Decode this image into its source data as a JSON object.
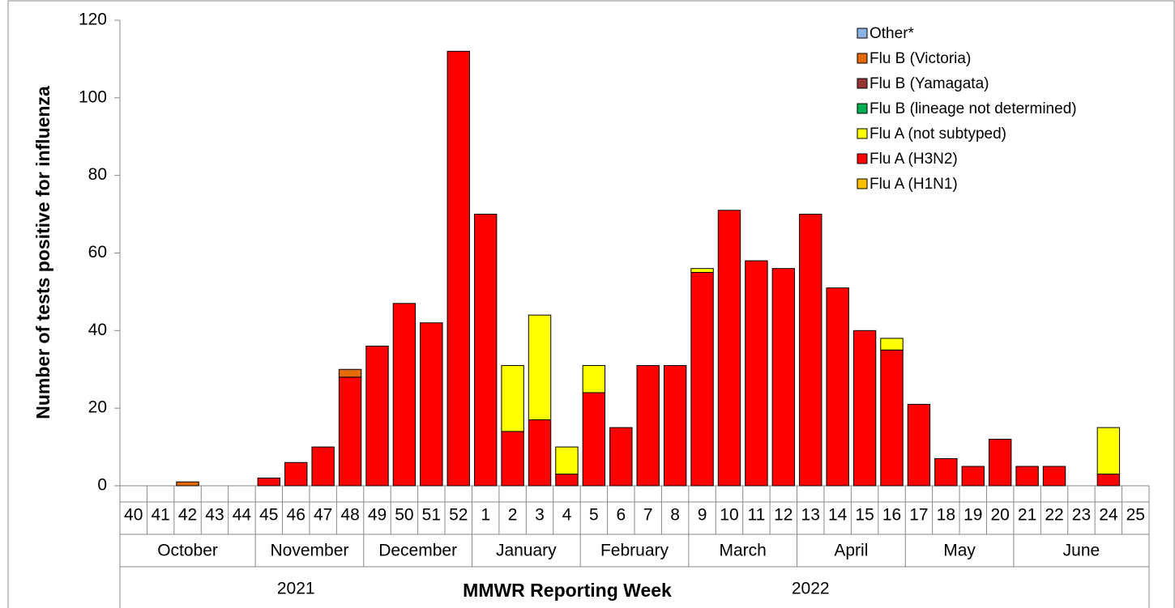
{
  "chart_data": {
    "type": "bar",
    "stacked": true,
    "y_label": "Number of tests positive for influenza",
    "x_label": "MMWR  Reporting Week",
    "categories": [
      "40",
      "41",
      "42",
      "43",
      "44",
      "45",
      "46",
      "47",
      "48",
      "49",
      "50",
      "51",
      "52",
      "1",
      "2",
      "3",
      "4",
      "5",
      "6",
      "7",
      "8",
      "9",
      "10",
      "11",
      "12",
      "13",
      "14",
      "15",
      "16",
      "17",
      "18",
      "19",
      "20",
      "21",
      "22",
      "23",
      "24",
      "25"
    ],
    "months": [
      {
        "label": "October",
        "weeks": [
          "40",
          "44"
        ]
      },
      {
        "label": "November",
        "weeks": [
          "45",
          "48"
        ]
      },
      {
        "label": "December",
        "weeks": [
          "49",
          "52"
        ]
      },
      {
        "label": "January",
        "weeks": [
          "1",
          "4"
        ]
      },
      {
        "label": "February",
        "weeks": [
          "5",
          "8"
        ]
      },
      {
        "label": "March",
        "weeks": [
          "9",
          "12"
        ]
      },
      {
        "label": "April",
        "weeks": [
          "13",
          "16"
        ]
      },
      {
        "label": "May",
        "weeks": [
          "17",
          "20"
        ]
      },
      {
        "label": "June",
        "weeks": [
          "21",
          "25"
        ]
      }
    ],
    "years": [
      {
        "label": "2021",
        "weeks": [
          "40",
          "52"
        ]
      },
      {
        "label": "2022",
        "weeks": [
          "1",
          "25"
        ]
      }
    ],
    "series": [
      {
        "name": "Flu A (H1N1)",
        "color": "#FFC000",
        "values": [
          0,
          0,
          0,
          0,
          0,
          0,
          0,
          0,
          0,
          0,
          0,
          0,
          0,
          0,
          0,
          0,
          0,
          0,
          0,
          0,
          0,
          0,
          0,
          0,
          0,
          0,
          0,
          0,
          0,
          0,
          0,
          0,
          0,
          0,
          0,
          0,
          0,
          0
        ]
      },
      {
        "name": "Flu A (H3N2)",
        "color": "#FF0000",
        "values": [
          0,
          0,
          0,
          0,
          0,
          2,
          6,
          10,
          28,
          36,
          47,
          42,
          112,
          70,
          14,
          17,
          3,
          24,
          15,
          31,
          31,
          55,
          71,
          58,
          56,
          70,
          51,
          40,
          35,
          21,
          7,
          5,
          12,
          5,
          5,
          0,
          3,
          0
        ]
      },
      {
        "name": "Flu A (not subtyped)",
        "color": "#FFFF00",
        "values": [
          0,
          0,
          0,
          0,
          0,
          0,
          0,
          0,
          0,
          0,
          0,
          0,
          0,
          0,
          17,
          27,
          7,
          7,
          0,
          0,
          0,
          1,
          0,
          0,
          0,
          0,
          0,
          0,
          3,
          0,
          0,
          0,
          0,
          0,
          0,
          0,
          12,
          0
        ]
      },
      {
        "name": "Flu B (lineage not determined)",
        "color": "#00B050",
        "values": [
          0,
          0,
          0,
          0,
          0,
          0,
          0,
          0,
          0,
          0,
          0,
          0,
          0,
          0,
          0,
          0,
          0,
          0,
          0,
          0,
          0,
          0,
          0,
          0,
          0,
          0,
          0,
          0,
          0,
          0,
          0,
          0,
          0,
          0,
          0,
          0,
          0,
          0
        ]
      },
      {
        "name": "Flu B (Yamagata)",
        "color": "#943634",
        "values": [
          0,
          0,
          0,
          0,
          0,
          0,
          0,
          0,
          0,
          0,
          0,
          0,
          0,
          0,
          0,
          0,
          0,
          0,
          0,
          0,
          0,
          0,
          0,
          0,
          0,
          0,
          0,
          0,
          0,
          0,
          0,
          0,
          0,
          0,
          0,
          0,
          0,
          0
        ]
      },
      {
        "name": "Flu B (Victoria)",
        "color": "#E36C09",
        "values": [
          0,
          0,
          1,
          0,
          0,
          0,
          0,
          0,
          2,
          0,
          0,
          0,
          0,
          0,
          0,
          0,
          0,
          0,
          0,
          0,
          0,
          0,
          0,
          0,
          0,
          0,
          0,
          0,
          0,
          0,
          0,
          0,
          0,
          0,
          0,
          0,
          0,
          0
        ]
      },
      {
        "name": "Other*",
        "color": "#8EB4E3",
        "values": [
          0,
          0,
          0,
          0,
          0,
          0,
          0,
          0,
          0,
          0,
          0,
          0,
          0,
          0,
          0,
          0,
          0,
          0,
          0,
          0,
          0,
          0,
          0,
          0,
          0,
          0,
          0,
          0,
          0,
          0,
          0,
          0,
          0,
          0,
          0,
          0,
          0,
          0
        ]
      }
    ],
    "ylim": [
      0,
      120
    ],
    "yticks": [
      0,
      20,
      40,
      60,
      80,
      100,
      120
    ],
    "grid": false,
    "legend": "top-right"
  }
}
